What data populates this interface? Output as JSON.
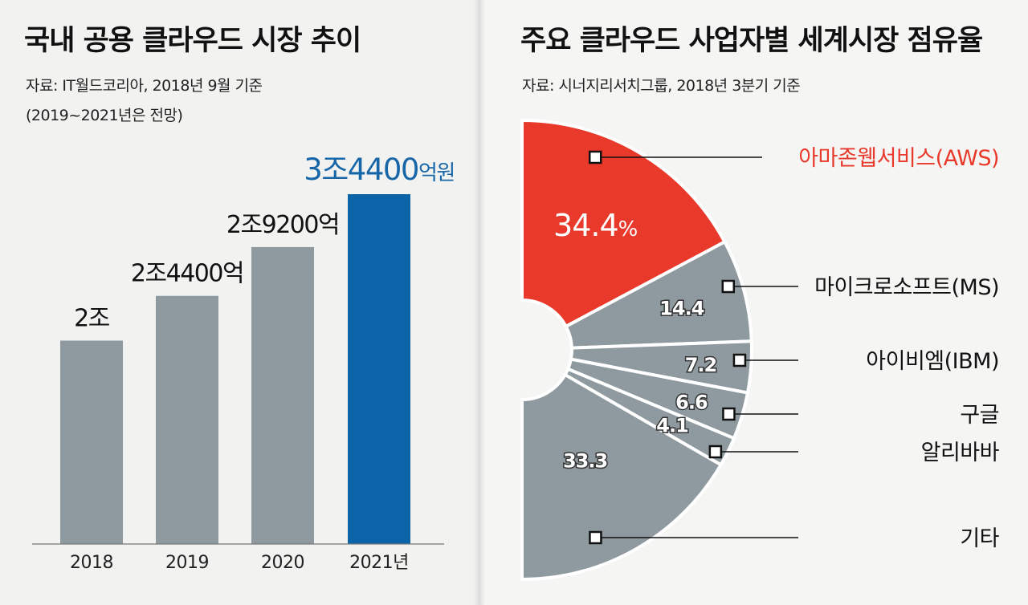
{
  "left": {
    "title": "국내 공용 클라우드 시장 추이",
    "source_line1": "자료: IT월드코리아, 2018년 9월 기준",
    "source_line2": "(2019~2021년은 전망)"
  },
  "right": {
    "title": "주요 클라우드 사업자별 세계시장 점유율",
    "source_line1": "자료: 시너지리서치그룹, 2018년 3분기 기준"
  },
  "colors": {
    "bar": "#8e9a9f",
    "bar_highlight": "#0b64a8",
    "slice": "#8e9a9f",
    "slice_highlight": "#e8392b",
    "label_highlight": "#e8392b",
    "value_highlight": "#1767a8"
  },
  "chart_data": [
    {
      "type": "bar",
      "title": "국내 공용 클라우드 시장 추이",
      "categories": [
        "2018",
        "2019",
        "2020",
        "2021년"
      ],
      "values": [
        20000,
        24400,
        29200,
        34400
      ],
      "value_labels": [
        "2조",
        "2조4400억",
        "2조9200억",
        "3조4400"
      ],
      "value_label_suffix": "억원",
      "highlight_index": 3,
      "unit": "억원"
    },
    {
      "type": "pie",
      "title": "주요 클라우드 사업자별 세계시장 점유율",
      "layout": "right-half donut",
      "slices": [
        {
          "label": "아마존웹서비스(AWS)",
          "value": 34.4,
          "value_text": "34.4",
          "value_suffix": "%",
          "highlight": true
        },
        {
          "label": "마이크로소프트(MS)",
          "value": 14.4,
          "value_text": "14.4"
        },
        {
          "label": "아이비엠(IBM)",
          "value": 7.2,
          "value_text": "7.2"
        },
        {
          "label": "구글",
          "value": 6.6,
          "value_text": "6.6"
        },
        {
          "label": "알리바바",
          "value": 4.1,
          "value_text": "4.1"
        },
        {
          "label": "기타",
          "value": 33.3,
          "value_text": "33.3"
        }
      ]
    }
  ]
}
